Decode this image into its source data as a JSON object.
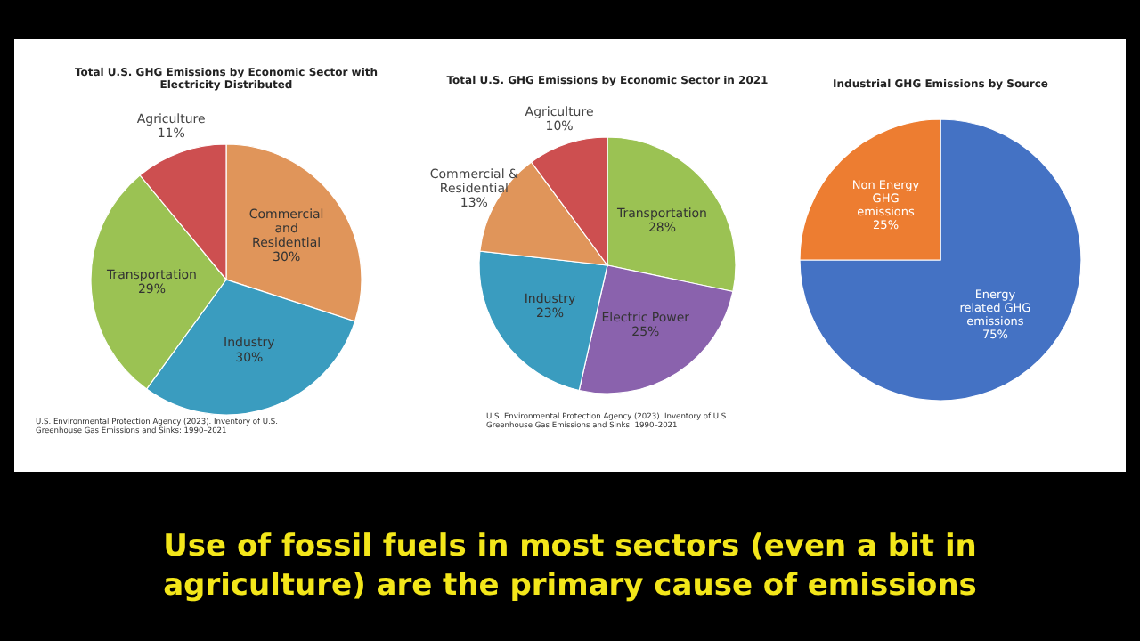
{
  "chart_data": [
    {
      "type": "pie",
      "title": "Total U.S. GHG Emissions by Economic Sector with\nElectricity Distributed",
      "categories": [
        "Commercial\nand\nResidential",
        "Industry",
        "Transportation",
        "Agriculture"
      ],
      "values": [
        30,
        30,
        29,
        11
      ],
      "value_labels": [
        "30%",
        "30%",
        "29%",
        "11%"
      ],
      "colors": [
        "#e0955a",
        "#3a9cbf",
        "#9bc253",
        "#cd4f50"
      ],
      "annotations": [
        "U.S. Environmental Protection Agency (2023). Inventory of U.S.\nGreenhouse Gas Emissions and Sinks: 1990–2021"
      ]
    },
    {
      "type": "pie",
      "title": "Total U.S. GHG Emissions by Economic Sector in 2021",
      "categories": [
        "Transportation",
        "Electric Power",
        "Industry",
        "Commercial &\nResidential",
        "Agriculture"
      ],
      "values": [
        28,
        25,
        23,
        13,
        10
      ],
      "value_labels": [
        "28%",
        "25%",
        "23%",
        "13%",
        "10%"
      ],
      "colors": [
        "#9bc253",
        "#8a62ad",
        "#3a9cbf",
        "#e0955a",
        "#cd4f50"
      ],
      "annotations": [
        "U.S. Environmental Protection Agency (2023). Inventory of U.S.\nGreenhouse Gas Emissions and Sinks: 1990–2021",
        "Use of fossil fuels in most sectors (even a bit in\nagriculture) are the primary cause of emissions"
      ]
    },
    {
      "type": "pie",
      "title": "Industrial GHG Emissions by Source",
      "categories": [
        "Energy\nrelated GHG\nemissions",
        "Non Energy\nGHG\nemissions"
      ],
      "values": [
        75,
        25
      ],
      "value_labels": [
        "75%",
        "25%"
      ],
      "colors": [
        "#4472c4",
        "#ed7d31"
      ]
    }
  ]
}
